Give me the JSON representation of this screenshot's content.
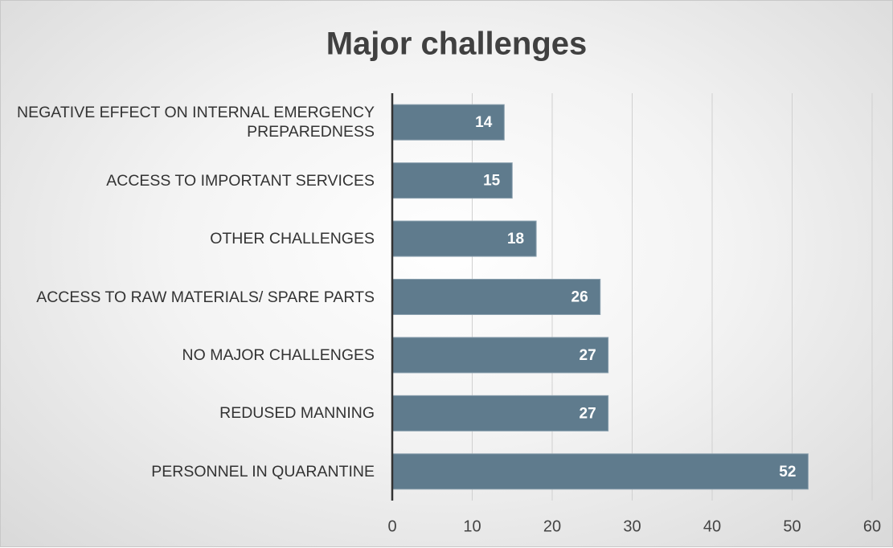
{
  "chart_data": {
    "type": "bar",
    "orientation": "horizontal",
    "title": "Major challenges",
    "categories": [
      "NEGATIVE EFFECT ON INTERNAL EMERGENCY PREPAREDNESS",
      "ACCESS TO IMPORTANT SERVICES",
      "OTHER CHALLENGES",
      "ACCESS TO RAW MATERIALS/ SPARE PARTS",
      "NO MAJOR CHALLENGES",
      "REDUSED MANNING",
      "PERSONNEL IN QUARANTINE"
    ],
    "values": [
      14,
      15,
      18,
      26,
      27,
      27,
      52
    ],
    "color": "#5f7b8d",
    "xlim": [
      0,
      60
    ],
    "xticks": [
      0,
      10,
      20,
      30,
      40,
      50,
      60
    ],
    "grid": true
  }
}
